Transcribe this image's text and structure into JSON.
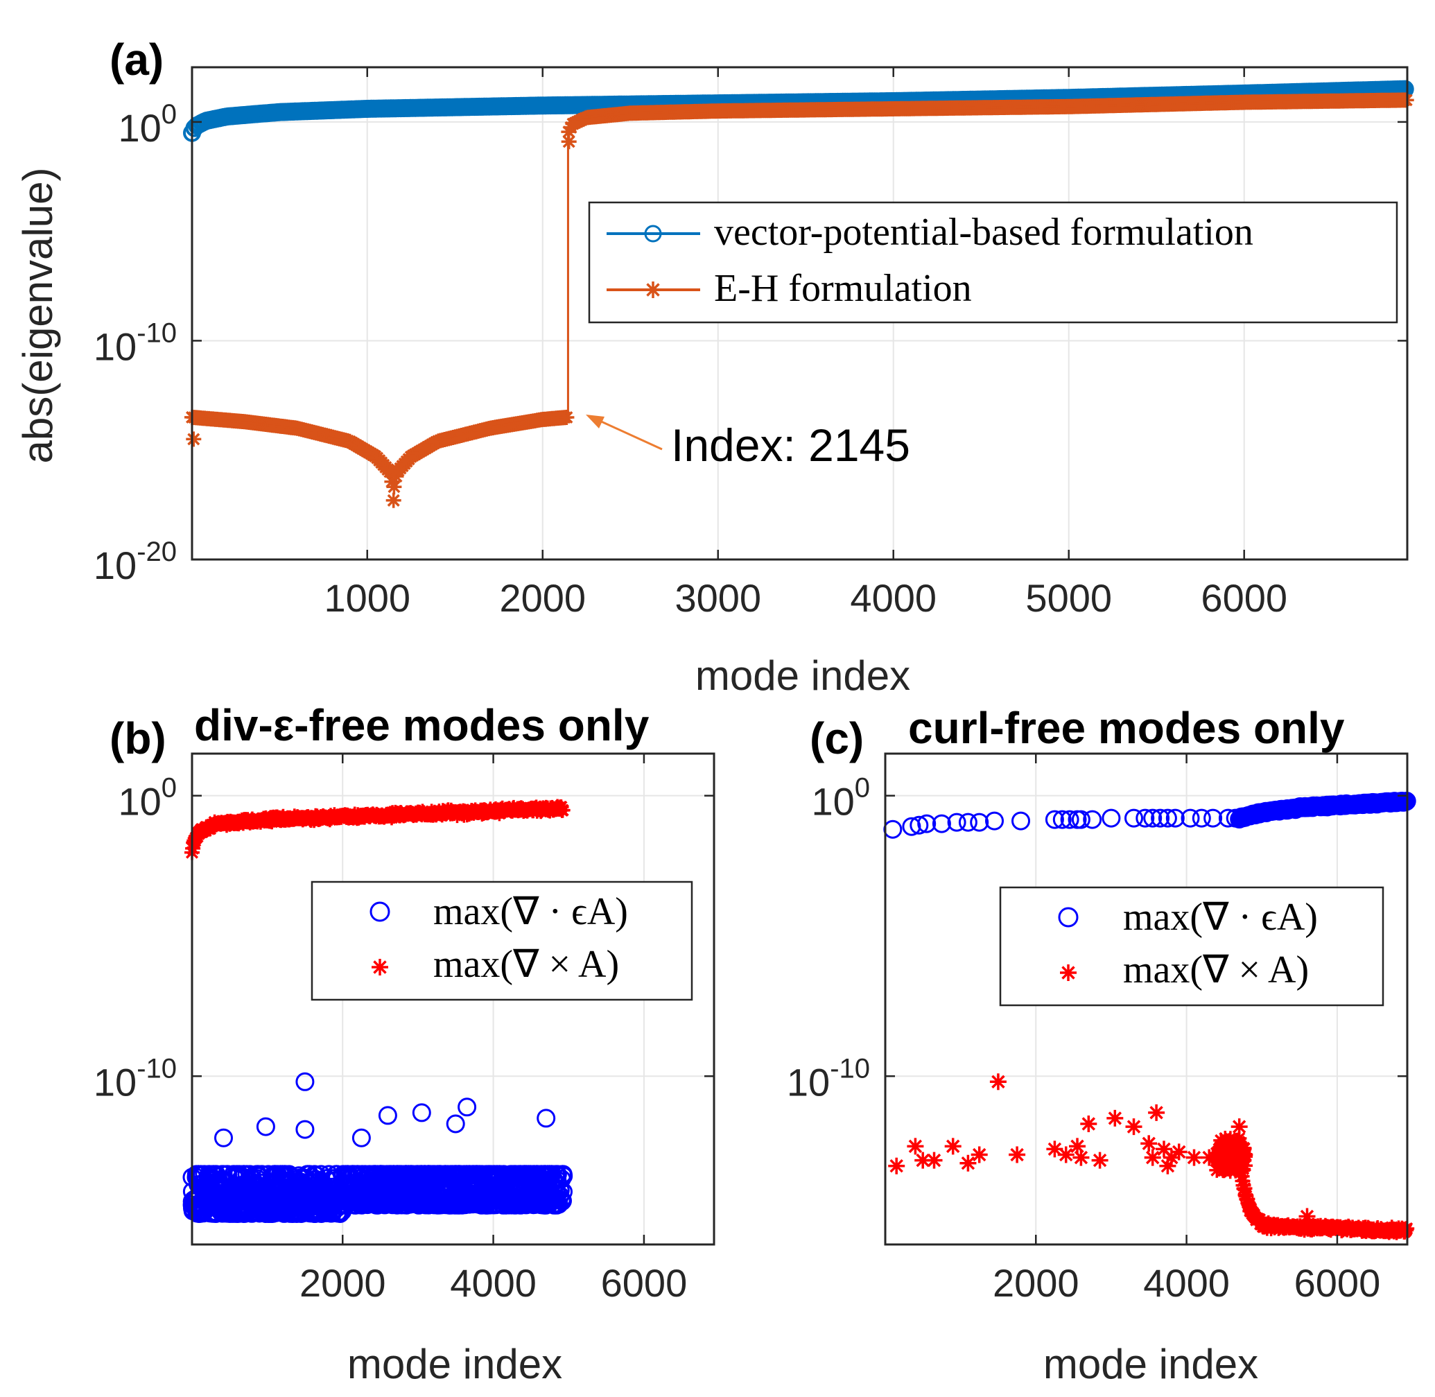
{
  "chart_data": [
    {
      "id": "a",
      "type": "scatter",
      "panel_label": "(a)",
      "title": "",
      "xlabel": "mode index",
      "ylabel": "abs(eigenvalue)",
      "y_scale": "log",
      "xlim": [
        1,
        6930
      ],
      "ylim_exp": [
        -20,
        2.5
      ],
      "xticks": [
        1000,
        2000,
        3000,
        4000,
        5000,
        6000
      ],
      "yticks": [
        {
          "exp": 0,
          "base": "10",
          "sup": "0"
        },
        {
          "exp": -10,
          "base": "10",
          "sup": "-10"
        },
        {
          "exp": -20,
          "base": "10",
          "sup": "-20"
        }
      ],
      "grid": true,
      "legend_position": "upper-right",
      "series": [
        {
          "name": "vector-potential-based formulation",
          "color": "#0072BD",
          "marker": "circle",
          "points_log10": [
            [
              1,
              -0.5
            ],
            [
              20,
              -0.2
            ],
            [
              80,
              0.05
            ],
            [
              200,
              0.25
            ],
            [
              500,
              0.45
            ],
            [
              1000,
              0.6
            ],
            [
              2000,
              0.75
            ],
            [
              3000,
              0.85
            ],
            [
              4000,
              0.95
            ],
            [
              5000,
              1.1
            ],
            [
              6000,
              1.3
            ],
            [
              6930,
              1.5
            ]
          ]
        },
        {
          "name": "E-H formulation",
          "color": "#D95319",
          "marker": "star",
          "points_log10": [
            [
              1,
              -13.5
            ],
            [
              300,
              -13.7
            ],
            [
              600,
              -14.0
            ],
            [
              900,
              -14.6
            ],
            [
              1050,
              -15.3
            ],
            [
              1130,
              -16.0
            ],
            [
              1150,
              -16.8
            ],
            [
              1170,
              -16.0
            ],
            [
              1250,
              -15.3
            ],
            [
              1400,
              -14.6
            ],
            [
              1700,
              -14.0
            ],
            [
              2000,
              -13.6
            ],
            [
              2140,
              -13.5
            ],
            [
              2145,
              -13.5
            ],
            [
              2146,
              -0.5
            ],
            [
              2170,
              -0.1
            ],
            [
              2250,
              0.2
            ],
            [
              2500,
              0.4
            ],
            [
              3000,
              0.5
            ],
            [
              4000,
              0.6
            ],
            [
              5000,
              0.7
            ],
            [
              6000,
              0.9
            ],
            [
              6930,
              1.0
            ]
          ]
        }
      ],
      "annotation": {
        "text": "Index: 2145",
        "x": 2145,
        "y_exp": -13.5
      }
    },
    {
      "id": "b",
      "type": "scatter",
      "panel_label": "(b)",
      "title": "div-ε-free modes only",
      "xlabel": "mode index",
      "ylabel": "",
      "y_scale": "log",
      "xlim": [
        1,
        6930
      ],
      "ylim_exp": [
        -16,
        1.5
      ],
      "xticks": [
        2000,
        4000,
        6000
      ],
      "yticks": [
        {
          "exp": 0,
          "base": "10",
          "sup": "0"
        },
        {
          "exp": -10,
          "base": "10",
          "sup": "-10"
        }
      ],
      "grid": true,
      "legend_position": "upper-right",
      "series": [
        {
          "name": "max(∇ · ϵA)",
          "color": "#0000FF",
          "marker": "circle",
          "x_range": [
            1,
            4930
          ],
          "band_log10": [
            -15.2,
            -13.5
          ],
          "outliers_log10": [
            [
              1500,
              -10.2
            ],
            [
              3650,
              -11.1
            ],
            [
              3050,
              -11.3
            ],
            [
              2600,
              -11.4
            ],
            [
              4700,
              -11.5
            ],
            [
              980,
              -11.8
            ],
            [
              1500,
              -11.9
            ],
            [
              420,
              -12.2
            ],
            [
              2250,
              -12.2
            ],
            [
              3500,
              -11.7
            ]
          ]
        },
        {
          "name": "max(∇ × A)",
          "color": "#FF0000",
          "marker": "star",
          "x_range": [
            1,
            4930
          ],
          "points_log10": [
            [
              1,
              -2.0
            ],
            [
              30,
              -1.6
            ],
            [
              100,
              -1.3
            ],
            [
              300,
              -1.0
            ],
            [
              1000,
              -0.85
            ],
            [
              2000,
              -0.75
            ],
            [
              3000,
              -0.65
            ],
            [
              4000,
              -0.55
            ],
            [
              4930,
              -0.45
            ]
          ]
        }
      ]
    },
    {
      "id": "c",
      "type": "scatter",
      "panel_label": "(c)",
      "title": "curl-free modes only",
      "xlabel": "mode index",
      "ylabel": "",
      "y_scale": "log",
      "xlim": [
        1,
        6930
      ],
      "ylim_exp": [
        -16,
        1.5
      ],
      "xticks": [
        2000,
        4000,
        6000
      ],
      "yticks": [
        {
          "exp": 0,
          "base": "10",
          "sup": "0"
        },
        {
          "exp": -10,
          "base": "10",
          "sup": "-10"
        }
      ],
      "grid": true,
      "legend_position": "upper-right",
      "series": [
        {
          "name": "max(∇ · ϵA)",
          "color": "#0000FF",
          "marker": "circle",
          "points_log10": [
            [
              100,
              -1.2
            ],
            [
              350,
              -1.1
            ],
            [
              450,
              -1.05
            ],
            [
              550,
              -1.0
            ],
            [
              750,
              -1.0
            ],
            [
              950,
              -0.95
            ],
            [
              1100,
              -0.95
            ],
            [
              1250,
              -0.95
            ],
            [
              1450,
              -0.9
            ],
            [
              1800,
              -0.9
            ],
            [
              2250,
              -0.85
            ],
            [
              2350,
              -0.85
            ],
            [
              2450,
              -0.85
            ],
            [
              2550,
              -0.85
            ],
            [
              2600,
              -0.85
            ],
            [
              2750,
              -0.85
            ],
            [
              3000,
              -0.8
            ],
            [
              3300,
              -0.8
            ],
            [
              3450,
              -0.8
            ],
            [
              3550,
              -0.8
            ],
            [
              3650,
              -0.8
            ],
            [
              3750,
              -0.8
            ],
            [
              3850,
              -0.8
            ],
            [
              4050,
              -0.8
            ],
            [
              4200,
              -0.8
            ],
            [
              4350,
              -0.8
            ],
            [
              4550,
              -0.8
            ],
            [
              4650,
              -0.8
            ]
          ],
          "dense_from_x": 4700,
          "dense_log10": [
            [
              4700,
              -0.8
            ],
            [
              5000,
              -0.6
            ],
            [
              5600,
              -0.4
            ],
            [
              6300,
              -0.3
            ],
            [
              6930,
              -0.2
            ]
          ]
        },
        {
          "name": "max(∇ × A)",
          "color": "#FF0000",
          "marker": "star",
          "points_log10": [
            [
              150,
              -13.2
            ],
            [
              400,
              -12.5
            ],
            [
              500,
              -13.0
            ],
            [
              650,
              -13.0
            ],
            [
              900,
              -12.5
            ],
            [
              1100,
              -13.1
            ],
            [
              1250,
              -12.8
            ],
            [
              1500,
              -10.2
            ],
            [
              1750,
              -12.8
            ],
            [
              2250,
              -12.6
            ],
            [
              2400,
              -12.8
            ],
            [
              2550,
              -12.5
            ],
            [
              2600,
              -12.9
            ],
            [
              2700,
              -11.7
            ],
            [
              2850,
              -13.0
            ],
            [
              3050,
              -11.5
            ],
            [
              3300,
              -11.8
            ],
            [
              3500,
              -12.4
            ],
            [
              3550,
              -12.9
            ],
            [
              3600,
              -11.3
            ],
            [
              3700,
              -12.6
            ],
            [
              3750,
              -13.2
            ],
            [
              3800,
              -12.9
            ],
            [
              3900,
              -12.7
            ],
            [
              4100,
              -12.9
            ],
            [
              4300,
              -12.9
            ],
            [
              4400,
              -13.0
            ],
            [
              4500,
              -12.9
            ],
            [
              4600,
              -13.0
            ],
            [
              4700,
              -11.8
            ]
          ],
          "cluster": {
            "x_range": [
              4400,
              4780
            ],
            "band_log10": [
              -13.4,
              -12.2
            ]
          },
          "dense_log10": [
            [
              4700,
              -13.0
            ],
            [
              4760,
              -14.0
            ],
            [
              4850,
              -14.8
            ],
            [
              5000,
              -15.3
            ],
            [
              5500,
              -15.4
            ],
            [
              6000,
              -15.4
            ],
            [
              6500,
              -15.5
            ],
            [
              6930,
              -15.5
            ]
          ],
          "extra_points_log10": [
            [
              5600,
              -15.0
            ]
          ]
        }
      ]
    }
  ]
}
